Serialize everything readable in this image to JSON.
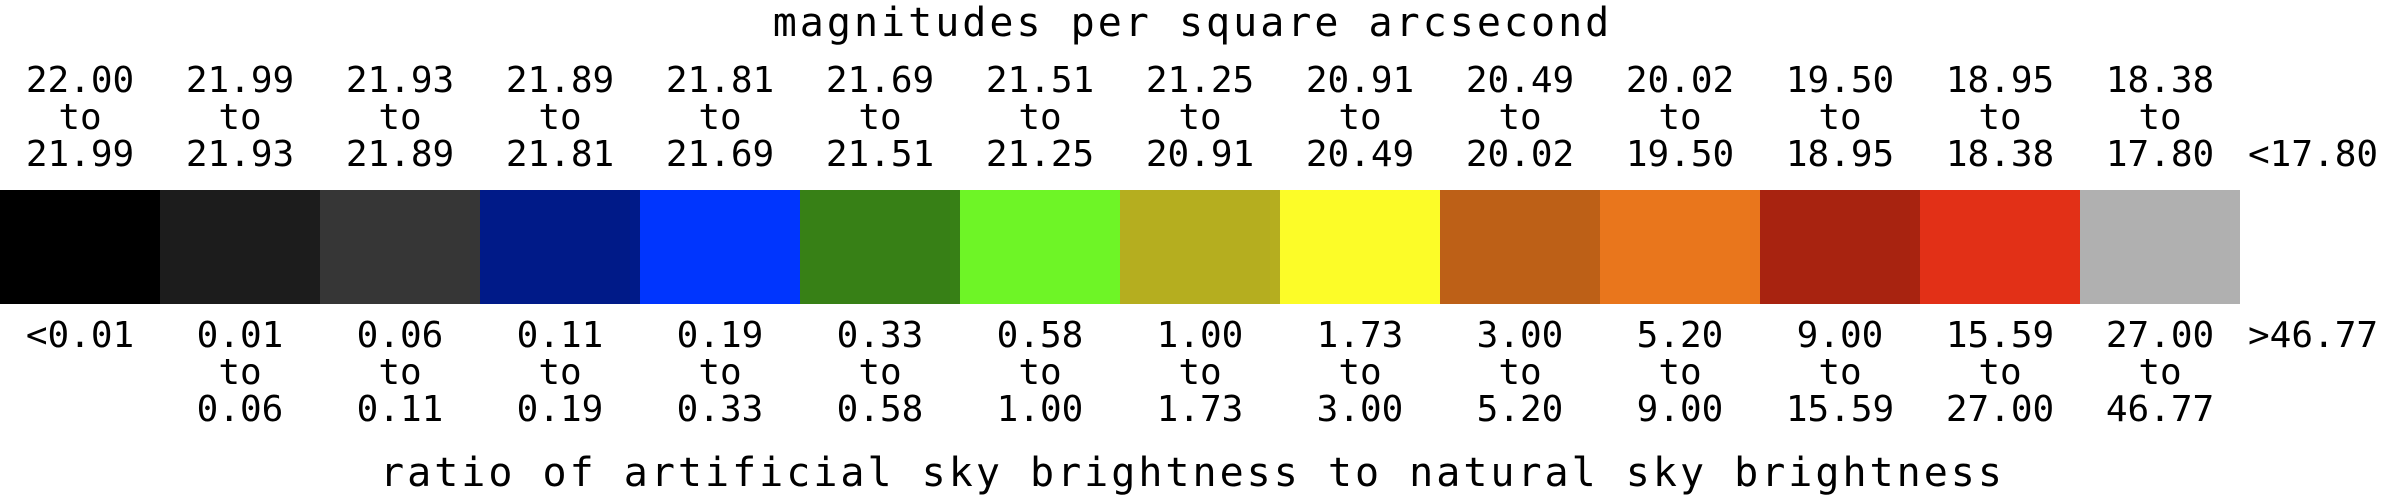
{
  "top_title": "magnitudes per square arcsecond",
  "bottom_title": "ratio of artificial sky brightness to natural sky brightness",
  "connector": "to",
  "bins": [
    {
      "mag_from": "22.00",
      "mag_to": "21.99",
      "ratio_from": "<0.01",
      "ratio_to": "",
      "color": "#000000"
    },
    {
      "mag_from": "21.99",
      "mag_to": "21.93",
      "ratio_from": "0.01",
      "ratio_to": "0.06",
      "color": "#1c1c1c"
    },
    {
      "mag_from": "21.93",
      "mag_to": "21.89",
      "ratio_from": "0.06",
      "ratio_to": "0.11",
      "color": "#363636"
    },
    {
      "mag_from": "21.89",
      "mag_to": "21.81",
      "ratio_from": "0.11",
      "ratio_to": "0.19",
      "color": "#001a88"
    },
    {
      "mag_from": "21.81",
      "mag_to": "21.69",
      "ratio_from": "0.19",
      "ratio_to": "0.33",
      "color": "#0035fe"
    },
    {
      "mag_from": "21.69",
      "mag_to": "21.51",
      "ratio_from": "0.33",
      "ratio_to": "0.58",
      "color": "#378016"
    },
    {
      "mag_from": "21.51",
      "mag_to": "21.25",
      "ratio_from": "0.58",
      "ratio_to": "1.00",
      "color": "#6ef526"
    },
    {
      "mag_from": "21.25",
      "mag_to": "20.91",
      "ratio_from": "1.00",
      "ratio_to": "1.73",
      "color": "#b5ae1f"
    },
    {
      "mag_from": "20.91",
      "mag_to": "20.49",
      "ratio_from": "1.73",
      "ratio_to": "3.00",
      "color": "#fcfc28"
    },
    {
      "mag_from": "20.49",
      "mag_to": "20.02",
      "ratio_from": "3.00",
      "ratio_to": "5.20",
      "color": "#bd6017"
    },
    {
      "mag_from": "20.02",
      "mag_to": "19.50",
      "ratio_from": "5.20",
      "ratio_to": "9.00",
      "color": "#e9761c"
    },
    {
      "mag_from": "19.50",
      "mag_to": "18.95",
      "ratio_from": "9.00",
      "ratio_to": "15.59",
      "color": "#a82310"
    },
    {
      "mag_from": "18.95",
      "mag_to": "18.38",
      "ratio_from": "15.59",
      "ratio_to": "27.00",
      "color": "#e23017"
    },
    {
      "mag_from": "18.38",
      "mag_to": "17.80",
      "ratio_from": "27.00",
      "ratio_to": "46.77",
      "color": "#b0b0b0"
    }
  ],
  "last_mag_label": "<17.80",
  "last_ratio_label": ">46.77"
}
